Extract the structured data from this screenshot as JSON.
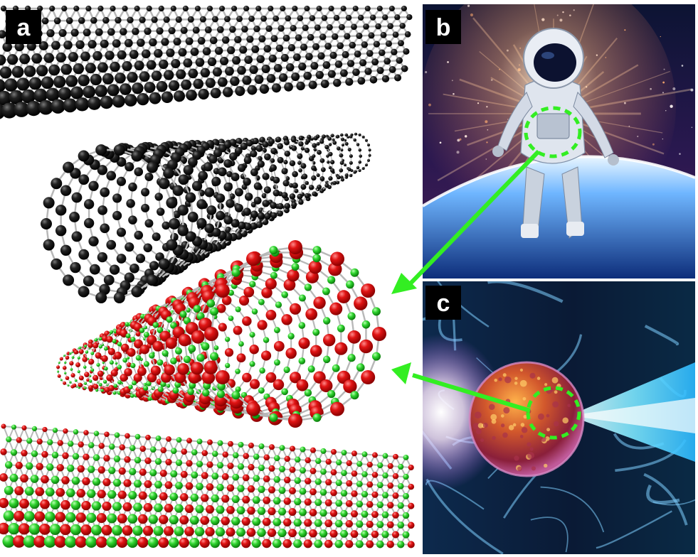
{
  "panels": [
    {
      "id": "a",
      "label": "a",
      "content": "carbon-nanostructures"
    },
    {
      "id": "b",
      "label": "b",
      "content": "astronaut-in-space"
    },
    {
      "id": "c",
      "label": "c",
      "content": "cell-struck-by-radiation"
    }
  ],
  "colors": {
    "carbon_atom": "#111111",
    "bond": "#c8c8c8",
    "red_atom": "#d81010",
    "green_atom": "#22cc22",
    "arrow": "#33ee22",
    "focus_circle": "#33ee22",
    "label_bg": "#000000",
    "label_text": "#ffffff",
    "space_top": "#0d1230",
    "space_bottom": "#3a1a55",
    "radiation_blue": "#5ad8ff"
  },
  "arrows": [
    {
      "from": "b",
      "to": "a"
    },
    {
      "from": "c",
      "to": "a"
    }
  ]
}
